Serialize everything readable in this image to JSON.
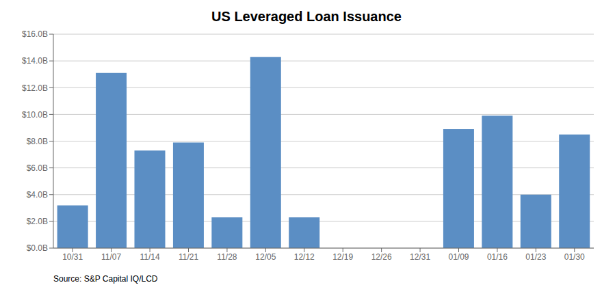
{
  "chart_data": {
    "type": "bar",
    "title": "US Leveraged Loan Issuance",
    "categories": [
      "10/31",
      "11/07",
      "11/14",
      "11/21",
      "11/28",
      "12/05",
      "12/12",
      "12/19",
      "12/26",
      "12/31",
      "01/09",
      "01/16",
      "01/23",
      "01/30"
    ],
    "values": [
      3.2,
      13.1,
      7.3,
      7.9,
      2.3,
      14.3,
      2.3,
      0.0,
      0.0,
      0.0,
      8.9,
      9.9,
      4.0,
      8.5
    ],
    "color": "#5b8ec4",
    "ylim": [
      0,
      16
    ],
    "yticks": [
      {
        "value": 0,
        "label": "$0.0B"
      },
      {
        "value": 2,
        "label": "$2.0B"
      },
      {
        "value": 4,
        "label": "$4.0B"
      },
      {
        "value": 6,
        "label": "$6.0B"
      },
      {
        "value": 8,
        "label": "$8.0B"
      },
      {
        "value": 10,
        "label": "$10.0B"
      },
      {
        "value": 12,
        "label": "$12.0B"
      },
      {
        "value": 14,
        "label": "$14.0B"
      },
      {
        "value": 16,
        "label": "$16.0B"
      }
    ],
    "grid": true,
    "annotations": [
      "Source: S&P Capital IQ/LCD"
    ]
  }
}
